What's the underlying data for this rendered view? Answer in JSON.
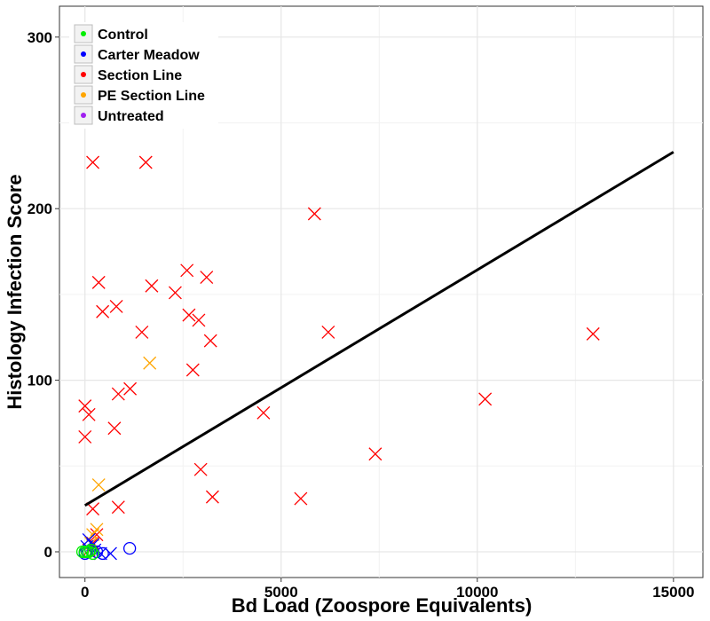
{
  "chart_data": {
    "type": "scatter",
    "xlabel": "Bd Load (Zoospore Equivalents)",
    "ylabel": "Histology Infection Score",
    "xlim": [
      -650,
      15750
    ],
    "ylim": [
      -15,
      318
    ],
    "x_ticks": [
      0,
      5000,
      10000,
      15000
    ],
    "x_tick_labels": [
      "0",
      "5000",
      "10000",
      "15000"
    ],
    "y_ticks": [
      0,
      100,
      200,
      300
    ],
    "y_tick_labels": [
      "0",
      "100",
      "200",
      "300"
    ],
    "grid": true,
    "legend_position": "top-left",
    "legend": [
      {
        "label": "Control",
        "color": "#00ee00"
      },
      {
        "label": "Carter Meadow",
        "color": "#0000ff"
      },
      {
        "label": "Section Line",
        "color": "#ff0000"
      },
      {
        "label": "PE Section Line",
        "color": "#ffa500"
      },
      {
        "label": "Untreated",
        "color": "#a020f0"
      }
    ],
    "trend_line": {
      "x": [
        0,
        15000
      ],
      "y": [
        27,
        233
      ],
      "color": "#000000"
    },
    "series": [
      {
        "name": "Control",
        "color": "#00ee00",
        "marker": "circle",
        "points": [
          [
            -60,
            0
          ],
          [
            0,
            0
          ],
          [
            50,
            0
          ],
          [
            100,
            0
          ],
          [
            150,
            1
          ],
          [
            200,
            -1
          ]
        ]
      },
      {
        "name": "Carter Meadow",
        "color": "#0000ff",
        "marker": "mixed",
        "points": [
          {
            "x": 1140,
            "y": 2,
            "m": "o"
          },
          {
            "x": 450,
            "y": -1,
            "m": "o"
          },
          {
            "x": 300,
            "y": 0,
            "m": "o"
          },
          {
            "x": 150,
            "y": 1,
            "m": "o"
          },
          {
            "x": 60,
            "y": 0,
            "m": "o"
          },
          {
            "x": 0,
            "y": -1,
            "m": "o"
          },
          {
            "x": 650,
            "y": -1,
            "m": "x"
          },
          {
            "x": 400,
            "y": -1,
            "m": "x"
          },
          {
            "x": 200,
            "y": 4,
            "m": "x"
          },
          {
            "x": 100,
            "y": 7,
            "m": "x"
          },
          {
            "x": 50,
            "y": 3,
            "m": "x"
          },
          {
            "x": 250,
            "y": 1,
            "m": "x"
          }
        ]
      },
      {
        "name": "Section Line",
        "color": "#ff0000",
        "marker": "x",
        "points": [
          [
            200,
            227
          ],
          [
            1550,
            227
          ],
          [
            5850,
            197
          ],
          [
            2600,
            164
          ],
          [
            3100,
            160
          ],
          [
            350,
            157
          ],
          [
            1700,
            155
          ],
          [
            2300,
            151
          ],
          [
            800,
            143
          ],
          [
            450,
            140
          ],
          [
            2650,
            138
          ],
          [
            2900,
            135
          ],
          [
            6200,
            128
          ],
          [
            1450,
            128
          ],
          [
            12950,
            127
          ],
          [
            3200,
            123
          ],
          [
            2750,
            106
          ],
          [
            1150,
            95
          ],
          [
            850,
            92
          ],
          [
            10200,
            89
          ],
          [
            0,
            85
          ],
          [
            100,
            80
          ],
          [
            4550,
            81
          ],
          [
            750,
            72
          ],
          [
            0,
            67
          ],
          [
            7400,
            57
          ],
          [
            2950,
            48
          ],
          [
            3250,
            32
          ],
          [
            5500,
            31
          ],
          [
            200,
            25
          ],
          [
            850,
            26
          ],
          [
            300,
            10
          ],
          [
            200,
            5
          ],
          [
            100,
            1
          ]
        ]
      },
      {
        "name": "PE Section Line",
        "color": "#ffa500",
        "marker": "x",
        "points": [
          [
            1650,
            110
          ],
          [
            350,
            39
          ],
          [
            300,
            13
          ],
          [
            200,
            10
          ],
          [
            150,
            5
          ]
        ]
      },
      {
        "name": "Untreated",
        "color": "#a020f0",
        "marker": "circle",
        "points": []
      }
    ]
  }
}
